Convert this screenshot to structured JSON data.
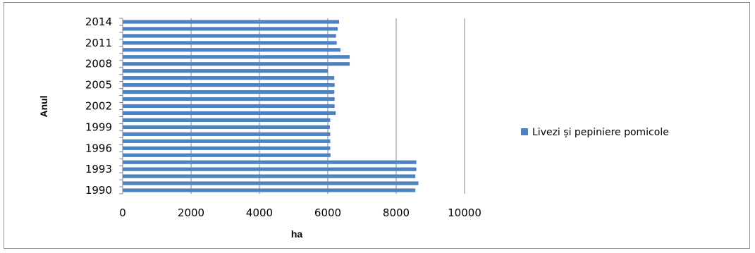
{
  "chart_data": {
    "type": "bar",
    "orientation": "horizontal",
    "xlabel": "ha",
    "ylabel": "Anul",
    "xlim": [
      0,
      10000
    ],
    "x_ticks": [
      "0",
      "2000",
      "4000",
      "6000",
      "8000",
      "10000"
    ],
    "y_tick_labels": [
      "1990",
      "1993",
      "1996",
      "1999",
      "2002",
      "2005",
      "2008",
      "2011",
      "2014"
    ],
    "grid": "vertical major gridlines",
    "legend_position": "right",
    "colors": {
      "bar": "#4F81BD",
      "grid": "#868686"
    },
    "categories": [
      "1990",
      "1991",
      "1992",
      "1993",
      "1994",
      "1995",
      "1996",
      "1997",
      "1998",
      "1999",
      "2000",
      "2001",
      "2002",
      "2003",
      "2004",
      "2005",
      "2006",
      "2007",
      "2008",
      "2009",
      "2010",
      "2011",
      "2012",
      "2013",
      "2014"
    ],
    "series": [
      {
        "name": "Livezi și pepiniere pomicole",
        "values": [
          8560,
          8650,
          8560,
          8590,
          8590,
          6080,
          6070,
          6070,
          6070,
          6060,
          6070,
          6230,
          6200,
          6200,
          6190,
          6200,
          6190,
          6000,
          6640,
          6640,
          6370,
          6260,
          6240,
          6290,
          6330
        ]
      }
    ]
  }
}
